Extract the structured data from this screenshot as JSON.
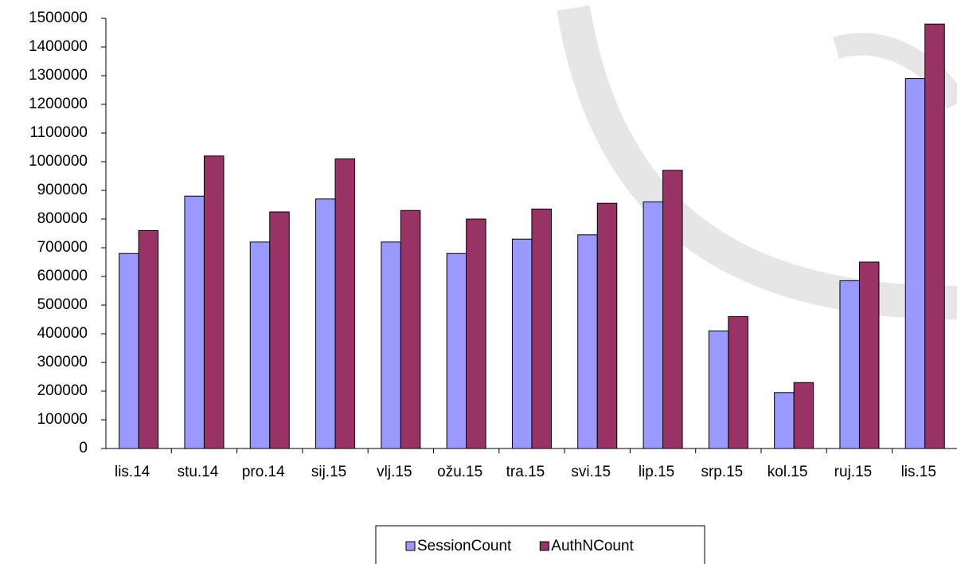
{
  "chart_data": {
    "type": "bar",
    "categories": [
      "lis.14",
      "stu.14",
      "pro.14",
      "sij.15",
      "vlj.15",
      "ožu.15",
      "tra.15",
      "svi.15",
      "lip.15",
      "srp.15",
      "kol.15",
      "ruj.15",
      "lis.15"
    ],
    "series": [
      {
        "name": "SessionCount",
        "color": "#9999ff",
        "values": [
          680000,
          880000,
          720000,
          870000,
          720000,
          680000,
          730000,
          745000,
          860000,
          410000,
          195000,
          585000,
          1290000
        ]
      },
      {
        "name": "AuthNCount",
        "color": "#993366",
        "values": [
          760000,
          1020000,
          825000,
          1010000,
          830000,
          800000,
          835000,
          855000,
          970000,
          460000,
          230000,
          650000,
          1480000
        ]
      }
    ],
    "ylim": [
      0,
      1500000
    ],
    "yticks": [
      0,
      100000,
      200000,
      300000,
      400000,
      500000,
      600000,
      700000,
      800000,
      900000,
      1000000,
      1100000,
      1200000,
      1300000,
      1400000,
      1500000
    ],
    "grid": false,
    "legend": "bottom"
  }
}
